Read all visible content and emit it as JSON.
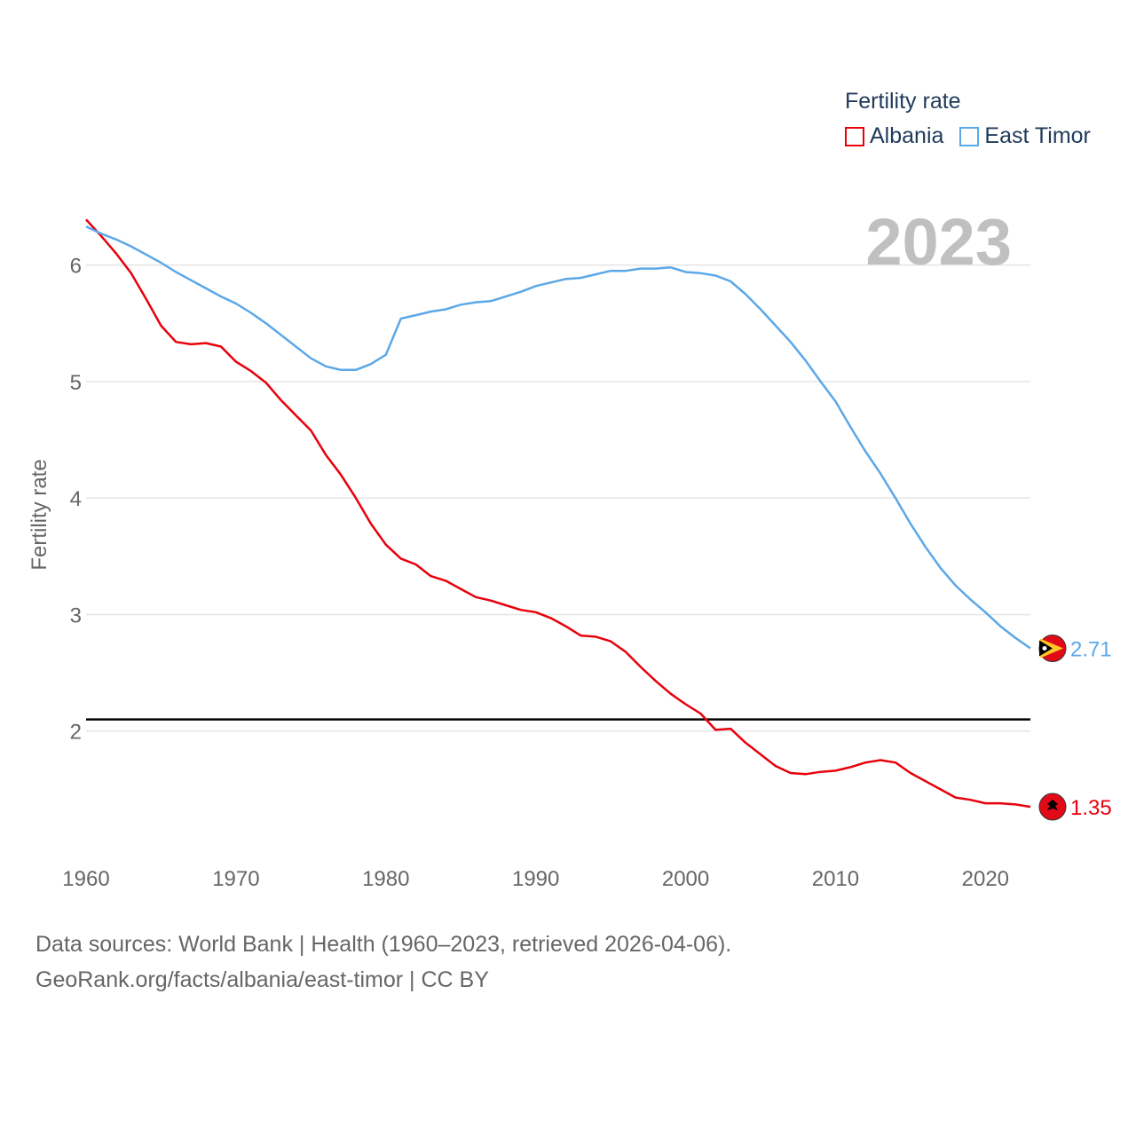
{
  "legend": {
    "title": "Fertility rate",
    "series_labels": [
      "Albania",
      "East Timor"
    ]
  },
  "year_badge": "2023",
  "colors": {
    "Albania": "#e8000b",
    "East Timor": "#5ba8e8",
    "grid": "#e5e5e5",
    "reference": "#000000"
  },
  "footer": {
    "line1": "Data sources: World Bank | Health (1960–2023, retrieved 2026-04-06).",
    "line2": "GeoRank.org/facts/albania/east-timor | CC BY"
  },
  "chart_data": {
    "type": "line",
    "title": "",
    "xlabel": "",
    "ylabel": "Fertility rate",
    "xlim": [
      1960,
      2023
    ],
    "ylim": [
      1.0,
      6.5
    ],
    "xticks": [
      1960,
      1970,
      1980,
      1990,
      2000,
      2010,
      2020
    ],
    "yticks": [
      2,
      3,
      4,
      5,
      6
    ],
    "reference_line": 2.1,
    "x": [
      1960,
      1961,
      1962,
      1963,
      1964,
      1965,
      1966,
      1967,
      1968,
      1969,
      1970,
      1971,
      1972,
      1973,
      1974,
      1975,
      1976,
      1977,
      1978,
      1979,
      1980,
      1981,
      1982,
      1983,
      1984,
      1985,
      1986,
      1987,
      1988,
      1989,
      1990,
      1991,
      1992,
      1993,
      1994,
      1995,
      1996,
      1997,
      1998,
      1999,
      2000,
      2001,
      2002,
      2003,
      2004,
      2005,
      2006,
      2007,
      2008,
      2009,
      2010,
      2011,
      2012,
      2013,
      2014,
      2015,
      2016,
      2017,
      2018,
      2019,
      2020,
      2021,
      2022,
      2023
    ],
    "series": [
      {
        "name": "Albania",
        "end_label": "1.35",
        "values": [
          6.39,
          6.25,
          6.1,
          5.93,
          5.71,
          5.48,
          5.34,
          5.32,
          5.33,
          5.3,
          5.17,
          5.09,
          4.99,
          4.84,
          4.71,
          4.58,
          4.37,
          4.2,
          4.0,
          3.78,
          3.6,
          3.48,
          3.43,
          3.33,
          3.29,
          3.22,
          3.15,
          3.12,
          3.08,
          3.04,
          3.02,
          2.97,
          2.9,
          2.82,
          2.81,
          2.77,
          2.68,
          2.55,
          2.43,
          2.32,
          2.23,
          2.15,
          2.01,
          2.02,
          1.9,
          1.8,
          1.7,
          1.64,
          1.63,
          1.65,
          1.66,
          1.69,
          1.73,
          1.75,
          1.73,
          1.64,
          1.57,
          1.5,
          1.43,
          1.41,
          1.38,
          1.38,
          1.37,
          1.35
        ]
      },
      {
        "name": "East Timor",
        "end_label": "2.71",
        "values": [
          6.33,
          6.27,
          6.22,
          6.16,
          6.09,
          6.02,
          5.94,
          5.87,
          5.8,
          5.73,
          5.67,
          5.59,
          5.5,
          5.4,
          5.3,
          5.2,
          5.13,
          5.1,
          5.1,
          5.15,
          5.23,
          5.54,
          5.57,
          5.6,
          5.62,
          5.66,
          5.68,
          5.69,
          5.73,
          5.77,
          5.82,
          5.85,
          5.88,
          5.89,
          5.92,
          5.95,
          5.95,
          5.97,
          5.97,
          5.98,
          5.94,
          5.93,
          5.91,
          5.86,
          5.75,
          5.62,
          5.48,
          5.34,
          5.18,
          5.0,
          4.83,
          4.61,
          4.4,
          4.21,
          4.0,
          3.78,
          3.58,
          3.4,
          3.25,
          3.13,
          3.02,
          2.9,
          2.8,
          2.71
        ]
      }
    ]
  }
}
